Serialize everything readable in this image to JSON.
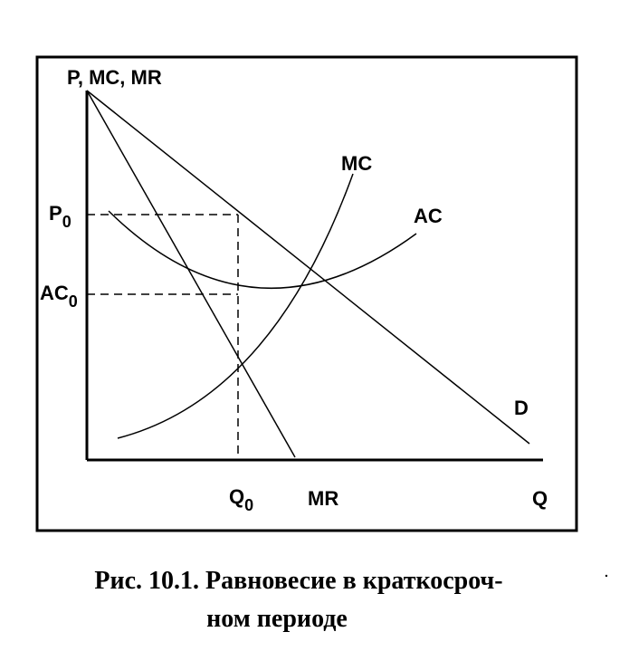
{
  "axes": {
    "y_label": "P, MC, MR",
    "x_label": "Q"
  },
  "curves": {
    "mc": "MC",
    "ac": "AC",
    "demand": "D",
    "mr": "MR"
  },
  "levels": {
    "p0": {
      "main": "P",
      "sub": "0"
    },
    "ac0": {
      "main": "AC",
      "sub": "0"
    },
    "q0": {
      "main": "Q",
      "sub": "0"
    }
  },
  "caption": {
    "lines": [
      "Рис. 10.1. Равновесие в краткосроч-",
      "ном периоде"
    ]
  }
}
